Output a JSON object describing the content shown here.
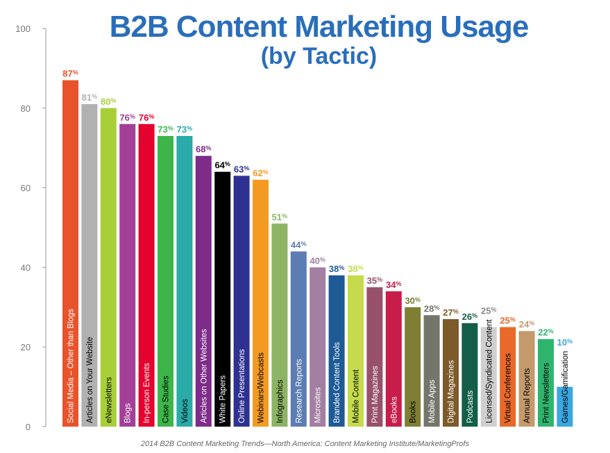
{
  "chart_data": {
    "type": "bar",
    "title": "B2B Content Marketing Usage",
    "subtitle": "(by Tactic)",
    "source": "2014 B2B Content Marketing Trends—North America: Content Marketing Institute/MarketingProfs",
    "xlabel": "",
    "ylabel": "",
    "ylim": [
      0,
      100
    ],
    "yticks": [
      0,
      20,
      40,
      60,
      80,
      100
    ],
    "grid": false,
    "value_suffix": "%",
    "categories": [
      "Social Media – Other than Blogs",
      "Articles on Your Website",
      "eNewsletters",
      "Blogs",
      "In-person Events",
      "Case Studies",
      "Videos",
      "Articles on Other Websites",
      "White Papers",
      "Online Presentations",
      "Webinars/Webcasts",
      "Infographics",
      "Research Reports",
      "Microsites",
      "Branded Content Tools",
      "Mobile Content",
      "Print Magazines",
      "eBooks",
      "Books",
      "Mobile Apps",
      "Digital Magazines",
      "Podcasts",
      "Licensed/Syndicated Content",
      "Virtual Conferences",
      "Annual Reports",
      "Print Newsletters",
      "Games/Gamification"
    ],
    "values": [
      87,
      81,
      80,
      76,
      76,
      73,
      73,
      68,
      64,
      63,
      62,
      51,
      44,
      40,
      38,
      38,
      35,
      34,
      30,
      28,
      27,
      26,
      25,
      25,
      24,
      22,
      10
    ],
    "colors": [
      "#e8532b",
      "#b1b1b1",
      "#a9cf38",
      "#a43f98",
      "#e4032e",
      "#3db54a",
      "#2aaaa8",
      "#7e2b8a",
      "#000000",
      "#2e3192",
      "#f49a22",
      "#8cb464",
      "#5b7db4",
      "#a27fa3",
      "#1e5b96",
      "#c5db4b",
      "#97516b",
      "#c81c4a",
      "#7f7e35",
      "#75766b",
      "#7d5a2a",
      "#135e48",
      "#cfcfcf",
      "#e8692a",
      "#c49a6c",
      "#2fb46e",
      "#3ba7e0"
    ],
    "value_label_colors": [
      "#e8532b",
      "#b1b1b1",
      "#a9cf38",
      "#a43f98",
      "#e4032e",
      "#3db54a",
      "#2aaaa8",
      "#7e2b8a",
      "#000000",
      "#2e3192",
      "#f49a22",
      "#8cb464",
      "#5b7db4",
      "#a27fa3",
      "#1e5b96",
      "#c5db4b",
      "#97516b",
      "#c81c4a",
      "#7f7e35",
      "#75766b",
      "#7d5a2a",
      "#135e48",
      "#8a8a8a",
      "#e8692a",
      "#c49a6c",
      "#2fb46e",
      "#3ba7e0"
    ],
    "category_label_colors": [
      "#ffffff",
      "#000000",
      "#000000",
      "#ffffff",
      "#ffffff",
      "#000000",
      "#000000",
      "#ffffff",
      "#ffffff",
      "#ffffff",
      "#000000",
      "#000000",
      "#ffffff",
      "#ffffff",
      "#ffffff",
      "#000000",
      "#ffffff",
      "#ffffff",
      "#000000",
      "#ffffff",
      "#ffffff",
      "#ffffff",
      "#000000",
      "#000000",
      "#000000",
      "#000000",
      "#000000"
    ]
  }
}
